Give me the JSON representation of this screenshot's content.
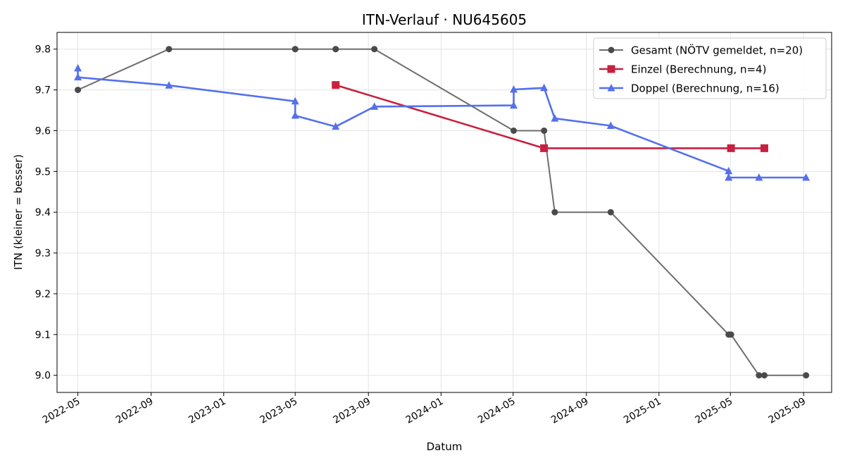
{
  "chart_data": {
    "type": "line",
    "title": "ITN-Verlauf · NU645605",
    "xlabel": "Datum",
    "ylabel": "ITN  (kleiner = besser)",
    "x_axis_type": "date",
    "xlim": [
      "2022-03-27",
      "2025-10-18"
    ],
    "ylim": [
      8.958,
      9.841
    ],
    "x_ticks": [
      "2022-05",
      "2022-09",
      "2023-01",
      "2023-05",
      "2023-09",
      "2024-01",
      "2024-05",
      "2024-09",
      "2025-01",
      "2025-05",
      "2025-09"
    ],
    "y_ticks": [
      "9.0",
      "9.1",
      "9.2",
      "9.3",
      "9.4",
      "9.5",
      "9.6",
      "9.7",
      "9.8"
    ],
    "grid": true,
    "legend_position": "top-right",
    "series": [
      {
        "name": "Gesamt (NÖTV gemeldet, n=20)",
        "color": "#6e6e6e",
        "marker": "circle",
        "points": [
          {
            "x": "2022-05-01",
            "y": 9.7
          },
          {
            "x": "2022-10-01",
            "y": 9.8
          },
          {
            "x": "2023-05-01",
            "y": 9.8
          },
          {
            "x": "2023-05-01",
            "y": 9.8
          },
          {
            "x": "2023-07-08",
            "y": 9.8
          },
          {
            "x": "2023-07-08",
            "y": 9.8
          },
          {
            "x": "2023-09-11",
            "y": 9.8
          },
          {
            "x": "2024-05-02",
            "y": 9.6
          },
          {
            "x": "2024-06-22",
            "y": 9.6
          },
          {
            "x": "2024-07-10",
            "y": 9.4
          },
          {
            "x": "2024-10-12",
            "y": 9.4
          },
          {
            "x": "2025-04-28",
            "y": 9.1
          },
          {
            "x": "2025-05-02",
            "y": 9.1
          },
          {
            "x": "2025-06-18",
            "y": 9.0
          },
          {
            "x": "2025-06-27",
            "y": 9.0
          },
          {
            "x": "2025-09-05",
            "y": 9.0
          }
        ]
      },
      {
        "name": "Einzel (Berechnung, n=4)",
        "color": "#c8203e",
        "marker": "square",
        "points": [
          {
            "x": "2023-07-08",
            "y": 9.712
          },
          {
            "x": "2024-06-22",
            "y": 9.557
          },
          {
            "x": "2025-05-02",
            "y": 9.557
          },
          {
            "x": "2025-06-27",
            "y": 9.557
          }
        ]
      },
      {
        "name": "Doppel (Berechnung, n=16)",
        "color": "#5470ec",
        "marker": "triangle",
        "points": [
          {
            "x": "2022-05-01",
            "y": 9.753
          },
          {
            "x": "2022-05-01",
            "y": 9.731
          },
          {
            "x": "2022-10-01",
            "y": 9.711
          },
          {
            "x": "2023-05-01",
            "y": 9.672
          },
          {
            "x": "2023-05-01",
            "y": 9.637
          },
          {
            "x": "2023-07-08",
            "y": 9.61
          },
          {
            "x": "2023-09-11",
            "y": 9.659
          },
          {
            "x": "2024-05-02",
            "y": 9.662
          },
          {
            "x": "2024-05-02",
            "y": 9.701
          },
          {
            "x": "2024-06-22",
            "y": 9.705
          },
          {
            "x": "2024-07-10",
            "y": 9.63
          },
          {
            "x": "2024-10-12",
            "y": 9.612
          },
          {
            "x": "2025-04-28",
            "y": 9.501
          },
          {
            "x": "2025-04-28",
            "y": 9.485
          },
          {
            "x": "2025-06-18",
            "y": 9.485
          },
          {
            "x": "2025-09-05",
            "y": 9.485
          }
        ]
      }
    ]
  }
}
